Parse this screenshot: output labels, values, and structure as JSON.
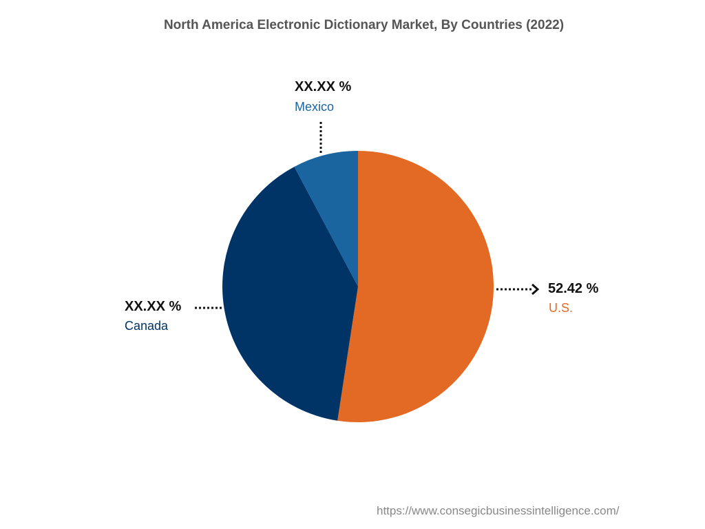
{
  "title": "North America Electronic Dictionary Market, By Countries (2022)",
  "footer": "https://www.consegicbusinessintelligence.com/",
  "chart_data": {
    "type": "pie",
    "title": "North America Electronic Dictionary Market, By Countries (2022)",
    "labels": [
      "U.S.",
      "Canada",
      "Mexico"
    ],
    "values": [
      52.42,
      39.8,
      7.78
    ],
    "value_labels": [
      "52.42 %",
      "XX.XX %",
      "XX.XX %"
    ],
    "colors": [
      "#e36a25",
      "#003366",
      "#1a65a0"
    ]
  }
}
